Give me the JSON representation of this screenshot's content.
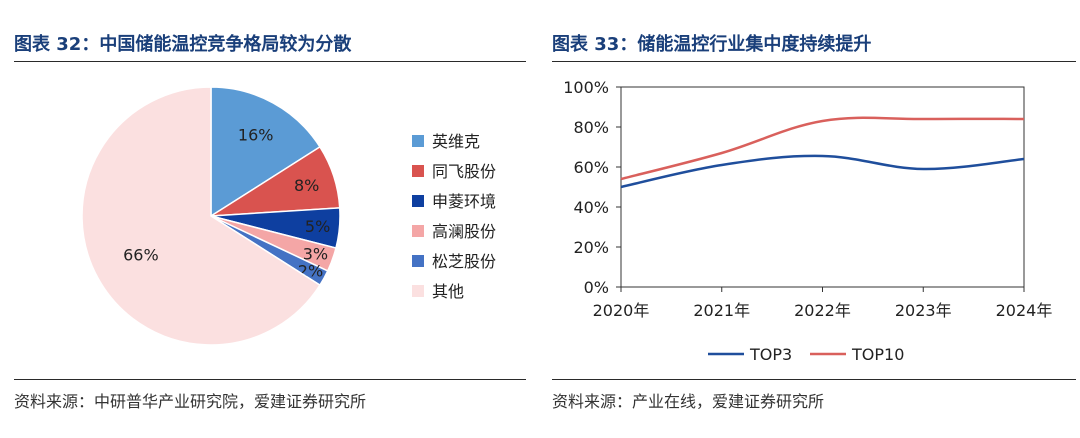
{
  "left": {
    "title": "图表 32：中国储能温控竞争格局较为分散",
    "source": "资料来源：中研普华产业研究院，爱建证券研究所"
  },
  "right": {
    "title": "图表 33：储能温控行业集中度持续提升",
    "source": "资料来源：产业在线，爱建证券研究所"
  },
  "chart_data": [
    {
      "type": "pie",
      "labels": [
        "英维克",
        "同飞股份",
        "申菱环境",
        "高澜股份",
        "松芝股份",
        "其他"
      ],
      "values": [
        16,
        8,
        5,
        3,
        2,
        66
      ],
      "value_labels": [
        "16%",
        "8%",
        "5%",
        "3%",
        "2%",
        "66%"
      ],
      "colors": [
        "#5b9bd5",
        "#d9534f",
        "#0e3fa0",
        "#f4a6a6",
        "#4472c4",
        "#fbe0e0"
      ],
      "legend_position": "right"
    },
    {
      "type": "line",
      "x": [
        "2020年",
        "2021年",
        "2022年",
        "2023年",
        "2024年"
      ],
      "series": [
        {
          "name": "TOP3",
          "values": [
            50,
            61,
            65.5,
            59,
            64
          ],
          "color": "#1f4e9c"
        },
        {
          "name": "TOP10",
          "values": [
            54,
            67,
            83,
            84,
            84
          ],
          "color": "#d9605c"
        }
      ],
      "ylim": [
        0,
        100
      ],
      "yticks": [
        "0%",
        "20%",
        "40%",
        "60%",
        "80%",
        "100%"
      ],
      "grid": false,
      "legend_position": "bottom"
    }
  ]
}
